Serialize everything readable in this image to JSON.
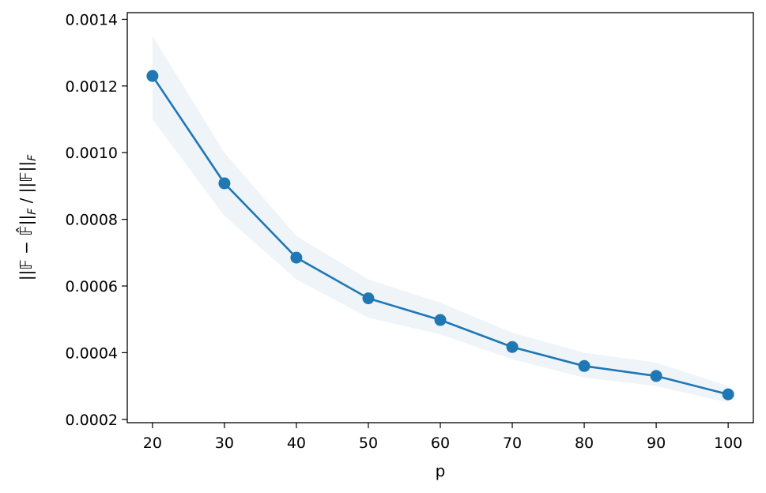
{
  "chart_data": {
    "type": "line",
    "title": "",
    "xlabel": "p",
    "ylabel": "||𝔽 − 𝔽̂||_F / ||𝔽||_F",
    "x": [
      20,
      30,
      40,
      50,
      60,
      70,
      80,
      90,
      100
    ],
    "xlim": [
      16.5,
      103.5
    ],
    "ylim": [
      0.00019,
      0.00142
    ],
    "xticks": [
      20,
      30,
      40,
      50,
      60,
      70,
      80,
      90,
      100
    ],
    "yticks": [
      0.0002,
      0.0004,
      0.0006,
      0.0008,
      0.001,
      0.0012,
      0.0014
    ],
    "ytick_labels": [
      "0.0002",
      "0.0004",
      "0.0006",
      "0.0008",
      "0.0010",
      "0.0012",
      "0.0014"
    ],
    "series": [
      {
        "values": [
          0.00123,
          0.000908,
          0.000685,
          0.000563,
          0.000498,
          0.000417,
          0.00036,
          0.00033,
          0.000275
        ],
        "lower": [
          0.0011,
          0.00081,
          0.00062,
          0.000505,
          0.000455,
          0.00038,
          0.000325,
          0.0003,
          0.00025
        ],
        "upper": [
          0.00135,
          0.001,
          0.00075,
          0.00062,
          0.00055,
          0.00046,
          0.0004,
          0.00037,
          0.0003
        ],
        "color": "#1f77b4",
        "band_color": "#dce6f2"
      }
    ],
    "grid": false,
    "legend": "none"
  }
}
